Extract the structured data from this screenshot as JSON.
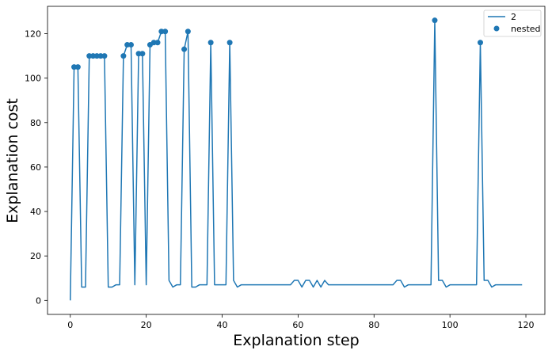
{
  "chart_data": {
    "type": "line",
    "xlabel": "Explanation step",
    "ylabel": "Explanation cost",
    "xlim": [
      -6,
      125
    ],
    "ylim": [
      -6.3,
      132.3
    ],
    "xticks": [
      0,
      20,
      40,
      60,
      80,
      100,
      120
    ],
    "yticks": [
      0,
      20,
      40,
      60,
      80,
      100,
      120
    ],
    "grid": false,
    "legend_position": "top-right",
    "series": [
      {
        "name": "2",
        "kind": "line",
        "color": "#1f77b4",
        "x": [
          0,
          1,
          2,
          3,
          4,
          5,
          6,
          7,
          8,
          9,
          10,
          11,
          12,
          13,
          14,
          15,
          16,
          17,
          18,
          19,
          20,
          21,
          22,
          23,
          24,
          25,
          26,
          27,
          28,
          29,
          30,
          31,
          32,
          33,
          34,
          35,
          36,
          37,
          38,
          39,
          40,
          41,
          42,
          43,
          44,
          45,
          46,
          47,
          48,
          49,
          50,
          51,
          52,
          53,
          54,
          55,
          56,
          57,
          58,
          59,
          60,
          61,
          62,
          63,
          64,
          65,
          66,
          67,
          68,
          69,
          70,
          71,
          72,
          73,
          74,
          75,
          76,
          77,
          78,
          79,
          80,
          81,
          82,
          83,
          84,
          85,
          86,
          87,
          88,
          89,
          90,
          91,
          92,
          93,
          94,
          95,
          96,
          97,
          98,
          99,
          100,
          101,
          102,
          103,
          104,
          105,
          106,
          107,
          108,
          109,
          110,
          111,
          112,
          113,
          114,
          115,
          116,
          117,
          118,
          119
        ],
        "y": [
          0,
          105,
          105,
          6,
          6,
          110,
          110,
          110,
          110,
          110,
          6,
          6,
          7,
          7,
          110,
          115,
          115,
          7,
          111,
          111,
          7,
          115,
          116,
          116,
          121,
          121,
          9,
          6,
          7,
          7,
          113,
          121,
          6,
          6,
          7,
          7,
          7,
          116,
          7,
          7,
          7,
          7,
          116,
          9,
          6,
          7,
          7,
          7,
          7,
          7,
          7,
          7,
          7,
          7,
          7,
          7,
          7,
          7,
          7,
          9,
          9,
          6,
          9,
          9,
          6,
          9,
          6,
          9,
          7,
          7,
          7,
          7,
          7,
          7,
          7,
          7,
          7,
          7,
          7,
          7,
          7,
          7,
          7,
          7,
          7,
          7,
          9,
          9,
          6,
          7,
          7,
          7,
          7,
          7,
          7,
          7,
          126,
          9,
          9,
          6,
          7,
          7,
          7,
          7,
          7,
          7,
          7,
          7,
          116,
          9,
          9,
          6,
          7,
          7,
          7,
          7,
          7,
          7,
          7,
          7
        ]
      },
      {
        "name": "nested",
        "kind": "scatter",
        "color": "#1f77b4",
        "x": [
          1,
          2,
          5,
          6,
          7,
          8,
          9,
          14,
          15,
          16,
          18,
          19,
          21,
          22,
          23,
          24,
          25,
          30,
          31,
          37,
          42,
          96,
          108
        ],
        "y": [
          105,
          105,
          110,
          110,
          110,
          110,
          110,
          110,
          115,
          115,
          111,
          111,
          115,
          116,
          116,
          121,
          121,
          113,
          121,
          116,
          116,
          126,
          116
        ]
      }
    ]
  }
}
